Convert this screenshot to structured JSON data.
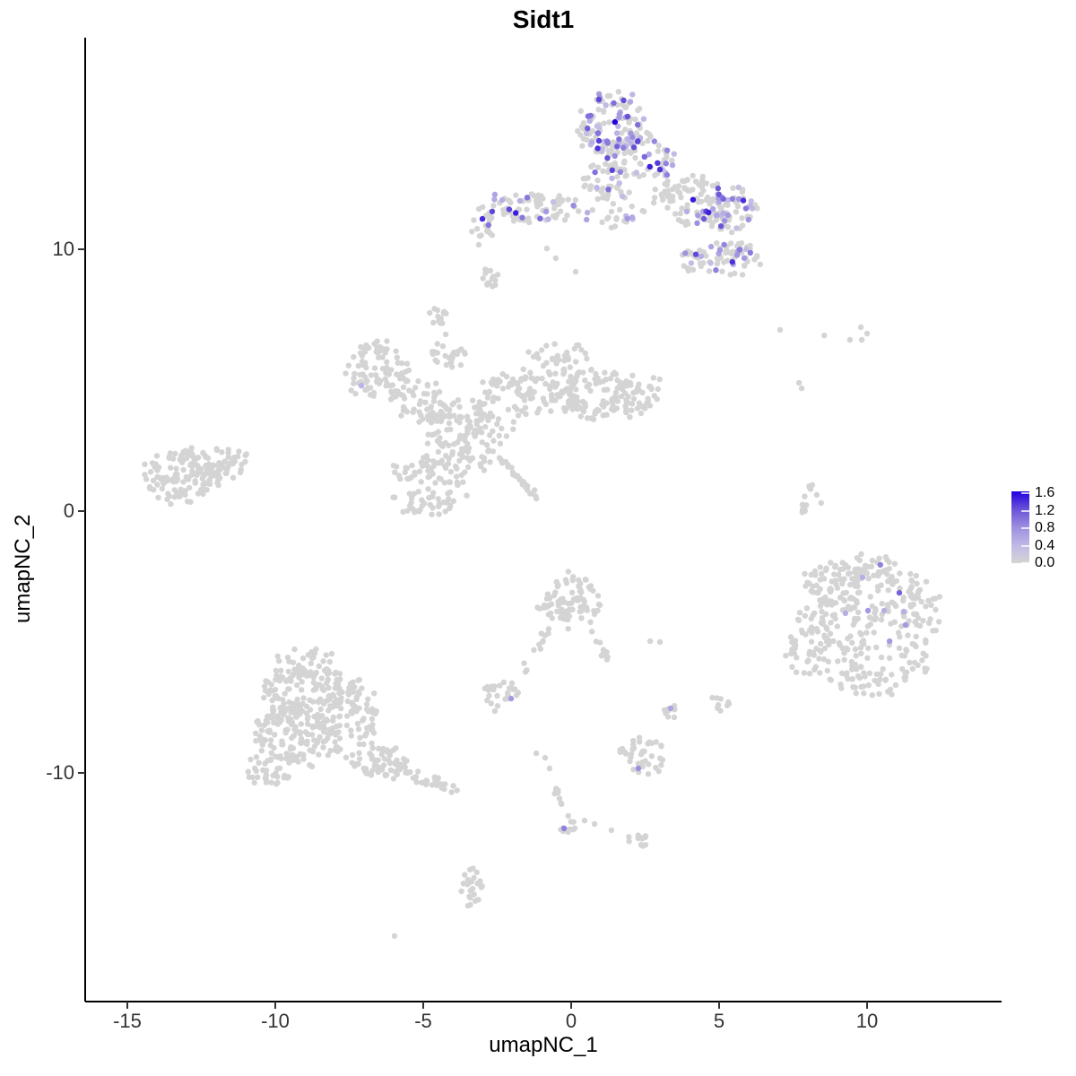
{
  "chart_data": {
    "type": "scatter",
    "title": "Sidt1",
    "xlabel": "umapNC_1",
    "ylabel": "umapNC_2",
    "xlim": [
      -16.4,
      14.6
    ],
    "ylim": [
      -18.8,
      18.1
    ],
    "x_ticks": [
      -15,
      -10,
      -5,
      0,
      5,
      10
    ],
    "y_ticks": [
      -10,
      0,
      10
    ],
    "grid": false,
    "background_color": "#ffffff",
    "axis_color": "#000000",
    "tick_label_color": "#333333",
    "zero_expression_color": "#d4d4d4",
    "colorbar": {
      "position": "right",
      "min": 0.0,
      "max": 1.6,
      "ticks": [
        1.6,
        1.2,
        0.8,
        0.4,
        0.0
      ],
      "low_color": "#d6d6d6",
      "mid_color": "#9d8fdf",
      "high_color": "#2000e0"
    },
    "point_radius_px": 3.2,
    "seed": 42,
    "clusters": [
      {
        "id": "top-blob-core",
        "cx": 1.39,
        "cy": 14.73,
        "rx": 1.15,
        "ry": 1.3,
        "rot": 0,
        "n": 120,
        "frac": 0.38
      },
      {
        "id": "top-blob-east",
        "cx": 2.21,
        "cy": 13.53,
        "rx": 1.21,
        "ry": 1.03,
        "rot": 0,
        "n": 80,
        "frac": 0.3
      },
      {
        "id": "top-blob-south",
        "cx": 1.06,
        "cy": 12.67,
        "rx": 0.76,
        "ry": 0.75,
        "rot": 0,
        "n": 40,
        "frac": 0.25
      },
      {
        "id": "top-neck",
        "cx": 1.61,
        "cy": 11.47,
        "rx": 0.85,
        "ry": 0.68,
        "rot": 0,
        "n": 25,
        "frac": 0.15
      },
      {
        "id": "top-right-lobe",
        "cx": 4.03,
        "cy": 11.82,
        "rx": 1.36,
        "ry": 0.96,
        "rot": -20,
        "n": 90,
        "frac": 0.12
      },
      {
        "id": "top-right-tip",
        "cx": 5.39,
        "cy": 11.47,
        "rx": 0.85,
        "ry": 0.86,
        "rot": 0,
        "n": 60,
        "frac": 0.28
      },
      {
        "id": "top-right-lower",
        "cx": 5.39,
        "cy": 9.59,
        "rx": 0.97,
        "ry": 0.68,
        "rot": 0,
        "n": 50,
        "frac": 0.12
      },
      {
        "id": "top-right-lower-west",
        "cx": 4.18,
        "cy": 9.59,
        "rx": 0.55,
        "ry": 0.48,
        "rot": 0,
        "n": 20,
        "frac": 0.1
      },
      {
        "id": "top-left-arm",
        "cx": -1.42,
        "cy": 11.58,
        "rx": 1.67,
        "ry": 0.55,
        "rot": 0,
        "n": 70,
        "frac": 0.08
      },
      {
        "id": "top-left-arm-tip",
        "cx": -3.03,
        "cy": 10.96,
        "rx": 0.42,
        "ry": 0.75,
        "rot": 0,
        "n": 20,
        "frac": 0.05
      },
      {
        "id": "central-nw-ring",
        "cx": -6.58,
        "cy": 5.31,
        "rx": 1.21,
        "ry": 1.1,
        "rot": 0,
        "n": 90,
        "frac": 0
      },
      {
        "id": "central-w",
        "cx": -5.06,
        "cy": 4.28,
        "rx": 0.91,
        "ry": 0.86,
        "rot": 0,
        "n": 50,
        "frac": 0
      },
      {
        "id": "central-sw",
        "cx": -3.85,
        "cy": 3.08,
        "rx": 1.06,
        "ry": 1.03,
        "rot": 0,
        "n": 70,
        "frac": 0
      },
      {
        "id": "central-mid",
        "cx": -2.33,
        "cy": 4.11,
        "rx": 0.91,
        "ry": 1.2,
        "rot": 0,
        "n": 60,
        "frac": 0
      },
      {
        "id": "central-upper",
        "cx": -0.67,
        "cy": 4.97,
        "rx": 1.06,
        "ry": 1.37,
        "rot": 0,
        "n": 80,
        "frac": 0
      },
      {
        "id": "central-e",
        "cx": 0.7,
        "cy": 4.45,
        "rx": 1.36,
        "ry": 1.03,
        "rot": 0,
        "n": 90,
        "frac": 0
      },
      {
        "id": "central-e-tip",
        "cx": 2.21,
        "cy": 4.45,
        "rx": 0.91,
        "ry": 0.86,
        "rot": 0,
        "n": 50,
        "frac": 0
      },
      {
        "id": "central-s-lobe",
        "cx": -4.76,
        "cy": 1.03,
        "rx": 1.36,
        "ry": 1.2,
        "rot": 0,
        "n": 100,
        "frac": 0
      },
      {
        "id": "central-s-join",
        "cx": -3.24,
        "cy": 2.4,
        "rx": 0.76,
        "ry": 0.86,
        "rot": 0,
        "n": 40,
        "frac": 0
      },
      {
        "id": "central-nw-spur",
        "cx": -4.15,
        "cy": 5.99,
        "rx": 0.61,
        "ry": 0.51,
        "rot": 0,
        "n": 25,
        "frac": 0
      },
      {
        "id": "central-n-sparse",
        "cx": -0.36,
        "cy": 5.99,
        "rx": 0.91,
        "ry": 0.41,
        "rot": 0,
        "n": 12,
        "frac": 0
      },
      {
        "id": "far-left-main",
        "cx": -13.09,
        "cy": 1.37,
        "rx": 1.36,
        "ry": 1.03,
        "rot": 15,
        "n": 130,
        "frac": 0
      },
      {
        "id": "far-left-tip",
        "cx": -11.73,
        "cy": 1.88,
        "rx": 0.85,
        "ry": 0.62,
        "rot": 0,
        "n": 40,
        "frac": 0
      },
      {
        "id": "right-main",
        "cx": 10.24,
        "cy": -4.45,
        "rx": 2.18,
        "ry": 2.67,
        "rot": 0,
        "n": 300,
        "frac": 0
      },
      {
        "id": "right-upper",
        "cx": 8.88,
        "cy": -2.74,
        "rx": 1.06,
        "ry": 0.86,
        "rot": 0,
        "n": 50,
        "frac": 0
      },
      {
        "id": "right-west-spur",
        "cx": 7.97,
        "cy": -5.14,
        "rx": 0.67,
        "ry": 1.2,
        "rot": 0,
        "n": 40,
        "frac": 0
      },
      {
        "id": "bottom-left-n",
        "cx": -9.0,
        "cy": -6.68,
        "rx": 1.36,
        "ry": 1.37,
        "rot": 0,
        "n": 150,
        "frac": 0
      },
      {
        "id": "bottom-left-s",
        "cx": -9.3,
        "cy": -8.56,
        "rx": 1.36,
        "ry": 1.2,
        "rot": 0,
        "n": 150,
        "frac": 0
      },
      {
        "id": "bottom-left-e",
        "cx": -7.48,
        "cy": -7.88,
        "rx": 0.91,
        "ry": 1.54,
        "rot": 0,
        "n": 90,
        "frac": 0
      },
      {
        "id": "bottom-left-se",
        "cx": -6.42,
        "cy": -9.59,
        "rx": 0.91,
        "ry": 0.68,
        "rot": 0,
        "n": 50,
        "frac": 0
      },
      {
        "id": "bottom-left-w-spur",
        "cx": -10.21,
        "cy": -9.93,
        "rx": 0.76,
        "ry": 0.62,
        "rot": 0,
        "n": 35,
        "frac": 0
      },
      {
        "id": "center-chain-head",
        "cx": -0.06,
        "cy": -3.42,
        "rx": 1.06,
        "ry": 1.03,
        "rot": 0,
        "n": 90,
        "frac": 0
      },
      {
        "id": "center-small-west",
        "cx": -2.33,
        "cy": -6.95,
        "rx": 0.67,
        "ry": 0.45,
        "rot": 0,
        "n": 25,
        "frac": 0
      },
      {
        "id": "center-dot-blob",
        "cx": 3.42,
        "cy": -7.67,
        "rx": 0.27,
        "ry": 0.31,
        "rot": 0,
        "n": 8,
        "frac": 0
      },
      {
        "id": "center-dot-blob-e",
        "cx": 5.0,
        "cy": -7.36,
        "rx": 0.36,
        "ry": 0.34,
        "rot": 0,
        "n": 10,
        "frac": 0
      },
      {
        "id": "bottom-center-blob",
        "cx": 2.45,
        "cy": -9.32,
        "rx": 0.76,
        "ry": 0.68,
        "rot": 0,
        "n": 40,
        "frac": 0
      },
      {
        "id": "chain-foot",
        "cx": -0.15,
        "cy": -12.05,
        "rx": 0.3,
        "ry": 0.34,
        "rot": 0,
        "n": 10,
        "frac": 0
      },
      {
        "id": "bottom-small-e",
        "cx": 2.27,
        "cy": -12.6,
        "rx": 0.48,
        "ry": 0.31,
        "rot": 0,
        "n": 12,
        "frac": 0
      },
      {
        "id": "bottom-small-strand",
        "cx": -3.33,
        "cy": -14.38,
        "rx": 0.39,
        "ry": 0.96,
        "rot": 0,
        "n": 25,
        "frac": 0
      },
      {
        "id": "mid-small-upper",
        "cx": -2.79,
        "cy": 8.84,
        "rx": 0.33,
        "ry": 0.45,
        "rot": 0,
        "n": 14,
        "frac": 0
      },
      {
        "id": "mid-small-lower",
        "cx": -4.52,
        "cy": 7.47,
        "rx": 0.36,
        "ry": 0.41,
        "rot": 0,
        "n": 12,
        "frac": 0
      }
    ],
    "strands": [
      {
        "id": "central-comet-tail",
        "x1": -2.48,
        "y1": 2.05,
        "x2": -1.12,
        "y2": 0.51,
        "n": 28,
        "w": 0.18
      },
      {
        "id": "bottom-left-tail",
        "x1": -5.97,
        "y1": -9.76,
        "x2": -4.0,
        "y2": -10.68,
        "n": 40,
        "w": 0.4
      },
      {
        "id": "chain-left-tail",
        "x1": -0.82,
        "y1": -4.45,
        "x2": -1.58,
        "y2": -6.16,
        "n": 12,
        "w": 0.25
      },
      {
        "id": "chain-right-tail",
        "x1": 0.7,
        "y1": -4.45,
        "x2": 1.21,
        "y2": -5.65,
        "n": 10,
        "w": 0.22
      },
      {
        "id": "chain-lower",
        "x1": -0.58,
        "y1": -10.45,
        "x2": -0.12,
        "y2": -11.58,
        "n": 10,
        "w": 0.2
      },
      {
        "id": "right-thin-strand",
        "x1": 8.12,
        "y1": 1.13,
        "x2": 7.76,
        "y2": -0.24,
        "n": 14,
        "w": 0.18
      }
    ],
    "stray_points": [
      [
        7.06,
        6.92
      ],
      [
        8.55,
        6.71
      ],
      [
        9.42,
        6.54
      ],
      [
        9.79,
        7.02
      ],
      [
        9.82,
        6.54
      ],
      [
        10.0,
        6.78
      ],
      [
        7.7,
        4.9
      ],
      [
        7.79,
        4.69
      ],
      [
        8.3,
        0.62
      ],
      [
        8.45,
        0.31
      ],
      [
        2.67,
        -4.97
      ],
      [
        3.0,
        -5.0
      ],
      [
        0.45,
        -11.82
      ],
      [
        0.79,
        -11.95
      ],
      [
        1.36,
        -12.19
      ],
      [
        -5.97,
        -16.23
      ],
      [
        -2.73,
        9.18
      ],
      [
        -4.24,
        6.75
      ],
      [
        -0.82,
        10.03
      ],
      [
        -0.52,
        9.66
      ],
      [
        0.15,
        9.14
      ],
      [
        -0.88,
        -9.42
      ],
      [
        -1.18,
        -9.25
      ],
      [
        -0.73,
        -9.83
      ],
      [
        -2.58,
        -7.64
      ]
    ],
    "expressing_points": [
      [
        1.48,
        14.86,
        1.6
      ],
      [
        0.94,
        14.14,
        1.3
      ],
      [
        1.91,
        15.07,
        1.2
      ],
      [
        -2.58,
        12.09,
        0.6
      ],
      [
        -2.33,
        11.88,
        0.5
      ],
      [
        -1.73,
        11.85,
        0.5
      ],
      [
        -0.85,
        11.44,
        0.7
      ],
      [
        0.55,
        11.4,
        0.5
      ],
      [
        0.52,
        11.13,
        0.6
      ],
      [
        -3.0,
        11.16,
        1.4
      ],
      [
        3.24,
        12.84,
        0.9
      ],
      [
        5.09,
        11.99,
        0.8
      ],
      [
        5.45,
        11.92,
        0.9
      ],
      [
        5.67,
        11.92,
        0.7
      ],
      [
        4.79,
        11.54,
        0.6
      ],
      [
        5.3,
        11.3,
        0.7
      ],
      [
        3.91,
        11.44,
        0.5
      ],
      [
        4.73,
        10.1,
        0.6
      ],
      [
        5.03,
        9.97,
        0.7
      ],
      [
        5.64,
        9.93,
        0.6
      ],
      [
        5.85,
        9.66,
        0.7
      ],
      [
        5.48,
        9.42,
        0.5
      ],
      [
        4.39,
        9.73,
        0.5
      ],
      [
        -7.09,
        4.79,
        0.45
      ],
      [
        10.45,
        -2.05,
        0.9
      ],
      [
        9.85,
        -2.53,
        0.5
      ],
      [
        11.09,
        -3.12,
        1.1
      ],
      [
        9.27,
        -3.9,
        0.5
      ],
      [
        10.03,
        -3.8,
        0.7
      ],
      [
        10.58,
        -3.8,
        0.5
      ],
      [
        11.24,
        -3.84,
        0.5
      ],
      [
        11.3,
        -4.35,
        0.7
      ],
      [
        10.76,
        -4.97,
        0.7
      ],
      [
        -2.03,
        -7.16,
        0.7
      ],
      [
        3.36,
        -7.53,
        0.6
      ],
      [
        2.27,
        -9.83,
        0.8
      ],
      [
        -0.24,
        -12.12,
        0.9
      ]
    ]
  }
}
